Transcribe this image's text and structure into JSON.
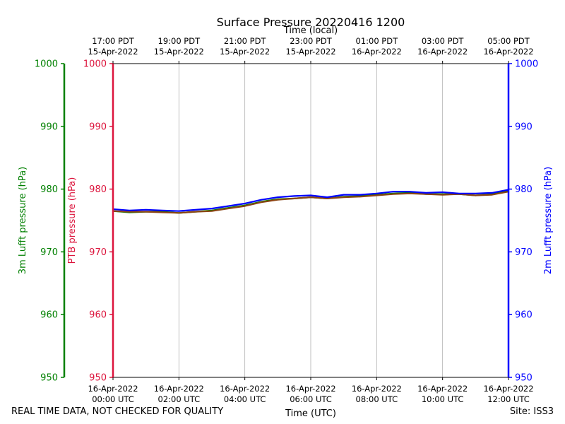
{
  "chart_data": {
    "type": "line",
    "title": "Surface Pressure 20220416 1200",
    "xlabel_bottom": "Time (UTC)",
    "xlabel_top": "Time (local)",
    "xlim": [
      "2022-04-16T00:00Z",
      "2022-04-16T12:00Z"
    ],
    "x_ticks_bottom": [
      {
        "x": "2022-04-16T00:00Z",
        "line1": "16-Apr-2022",
        "line2": "00:00 UTC"
      },
      {
        "x": "2022-04-16T02:00Z",
        "line1": "16-Apr-2022",
        "line2": "02:00 UTC"
      },
      {
        "x": "2022-04-16T04:00Z",
        "line1": "16-Apr-2022",
        "line2": "04:00 UTC"
      },
      {
        "x": "2022-04-16T06:00Z",
        "line1": "16-Apr-2022",
        "line2": "06:00 UTC"
      },
      {
        "x": "2022-04-16T08:00Z",
        "line1": "16-Apr-2022",
        "line2": "08:00 UTC"
      },
      {
        "x": "2022-04-16T10:00Z",
        "line1": "16-Apr-2022",
        "line2": "10:00 UTC"
      },
      {
        "x": "2022-04-16T12:00Z",
        "line1": "16-Apr-2022",
        "line2": "12:00 UTC"
      }
    ],
    "x_ticks_top": [
      {
        "x": "2022-04-16T00:00Z",
        "line1": "17:00 PDT",
        "line2": "15-Apr-2022"
      },
      {
        "x": "2022-04-16T02:00Z",
        "line1": "19:00 PDT",
        "line2": "15-Apr-2022"
      },
      {
        "x": "2022-04-16T04:00Z",
        "line1": "21:00 PDT",
        "line2": "15-Apr-2022"
      },
      {
        "x": "2022-04-16T06:00Z",
        "line1": "23:00 PDT",
        "line2": "15-Apr-2022"
      },
      {
        "x": "2022-04-16T08:00Z",
        "line1": "01:00 PDT",
        "line2": "16-Apr-2022"
      },
      {
        "x": "2022-04-16T10:00Z",
        "line1": "03:00 PDT",
        "line2": "16-Apr-2022"
      },
      {
        "x": "2022-04-16T12:00Z",
        "line1": "05:00 PDT",
        "line2": "16-Apr-2022"
      }
    ],
    "grid_x": true,
    "grid_y": false,
    "y_axes": [
      {
        "key": "lufft3m",
        "label": "3m Lufft pressure (hPa)",
        "color": "#008000",
        "ylim": [
          950,
          1000
        ],
        "ticks": [
          950,
          960,
          970,
          980,
          990,
          1000
        ]
      },
      {
        "key": "ptb",
        "label": "PTB pressure (hPa)",
        "color": "#dc143c",
        "ylim": [
          950,
          1000
        ],
        "ticks": [
          950,
          960,
          970,
          980,
          990,
          1000
        ]
      },
      {
        "key": "lufft2m",
        "label": "2m Lufft pressure (hPa)",
        "color": "#0000ff",
        "ylim": [
          950,
          1000
        ],
        "ticks": [
          950,
          960,
          970,
          980,
          990,
          1000
        ]
      }
    ],
    "series": [
      {
        "axis": "lufft3m",
        "color": "#008000",
        "x": [
          "2022-04-16T00:00Z",
          "2022-04-16T00:30Z",
          "2022-04-16T01:00Z",
          "2022-04-16T01:30Z",
          "2022-04-16T02:00Z",
          "2022-04-16T02:30Z",
          "2022-04-16T03:00Z",
          "2022-04-16T03:30Z",
          "2022-04-16T04:00Z",
          "2022-04-16T04:30Z",
          "2022-04-16T05:00Z",
          "2022-04-16T05:30Z",
          "2022-04-16T06:00Z",
          "2022-04-16T06:30Z",
          "2022-04-16T07:00Z",
          "2022-04-16T07:30Z",
          "2022-04-16T08:00Z",
          "2022-04-16T08:30Z",
          "2022-04-16T09:00Z",
          "2022-04-16T09:30Z",
          "2022-04-16T10:00Z",
          "2022-04-16T10:30Z",
          "2022-04-16T11:00Z",
          "2022-04-16T11:30Z",
          "2022-04-16T12:00Z"
        ],
        "values": [
          976.5,
          976.3,
          976.4,
          976.4,
          976.2,
          976.4,
          976.6,
          977.0,
          977.4,
          978.0,
          978.4,
          978.5,
          978.7,
          978.5,
          978.8,
          978.9,
          979.1,
          979.3,
          979.4,
          979.2,
          979.2,
          979.2,
          979.0,
          979.2,
          979.7
        ]
      },
      {
        "axis": "ptb",
        "color": "#8b4513",
        "x": [
          "2022-04-16T00:00Z",
          "2022-04-16T00:30Z",
          "2022-04-16T01:00Z",
          "2022-04-16T01:30Z",
          "2022-04-16T02:00Z",
          "2022-04-16T02:30Z",
          "2022-04-16T03:00Z",
          "2022-04-16T03:30Z",
          "2022-04-16T04:00Z",
          "2022-04-16T04:30Z",
          "2022-04-16T05:00Z",
          "2022-04-16T05:30Z",
          "2022-04-16T06:00Z",
          "2022-04-16T06:30Z",
          "2022-04-16T07:00Z",
          "2022-04-16T07:30Z",
          "2022-04-16T08:00Z",
          "2022-04-16T08:30Z",
          "2022-04-16T09:00Z",
          "2022-04-16T09:30Z",
          "2022-04-16T10:00Z",
          "2022-04-16T10:30Z",
          "2022-04-16T11:00Z",
          "2022-04-16T11:30Z",
          "2022-04-16T12:00Z"
        ],
        "values": [
          976.5,
          976.4,
          976.4,
          976.3,
          976.2,
          976.4,
          976.5,
          976.9,
          977.3,
          977.9,
          978.3,
          978.5,
          978.7,
          978.5,
          978.7,
          978.8,
          979.0,
          979.2,
          979.3,
          979.2,
          979.1,
          979.2,
          979.0,
          979.1,
          979.6
        ]
      },
      {
        "axis": "lufft2m",
        "color": "#0000ff",
        "x": [
          "2022-04-16T00:00Z",
          "2022-04-16T00:30Z",
          "2022-04-16T01:00Z",
          "2022-04-16T01:30Z",
          "2022-04-16T02:00Z",
          "2022-04-16T02:30Z",
          "2022-04-16T03:00Z",
          "2022-04-16T03:30Z",
          "2022-04-16T04:00Z",
          "2022-04-16T04:30Z",
          "2022-04-16T05:00Z",
          "2022-04-16T05:30Z",
          "2022-04-16T06:00Z",
          "2022-04-16T06:30Z",
          "2022-04-16T07:00Z",
          "2022-04-16T07:30Z",
          "2022-04-16T08:00Z",
          "2022-04-16T08:30Z",
          "2022-04-16T09:00Z",
          "2022-04-16T09:30Z",
          "2022-04-16T10:00Z",
          "2022-04-16T10:30Z",
          "2022-04-16T11:00Z",
          "2022-04-16T11:30Z",
          "2022-04-16T12:00Z"
        ],
        "values": [
          976.8,
          976.6,
          976.7,
          976.6,
          976.5,
          976.7,
          976.9,
          977.3,
          977.7,
          978.3,
          978.7,
          978.9,
          979.0,
          978.7,
          979.1,
          979.1,
          979.3,
          979.6,
          979.6,
          979.4,
          979.5,
          979.3,
          979.3,
          979.4,
          979.9
        ]
      }
    ]
  },
  "footer": {
    "left": "REAL TIME DATA, NOT CHECKED FOR QUALITY",
    "right": "Site: ISS3"
  }
}
